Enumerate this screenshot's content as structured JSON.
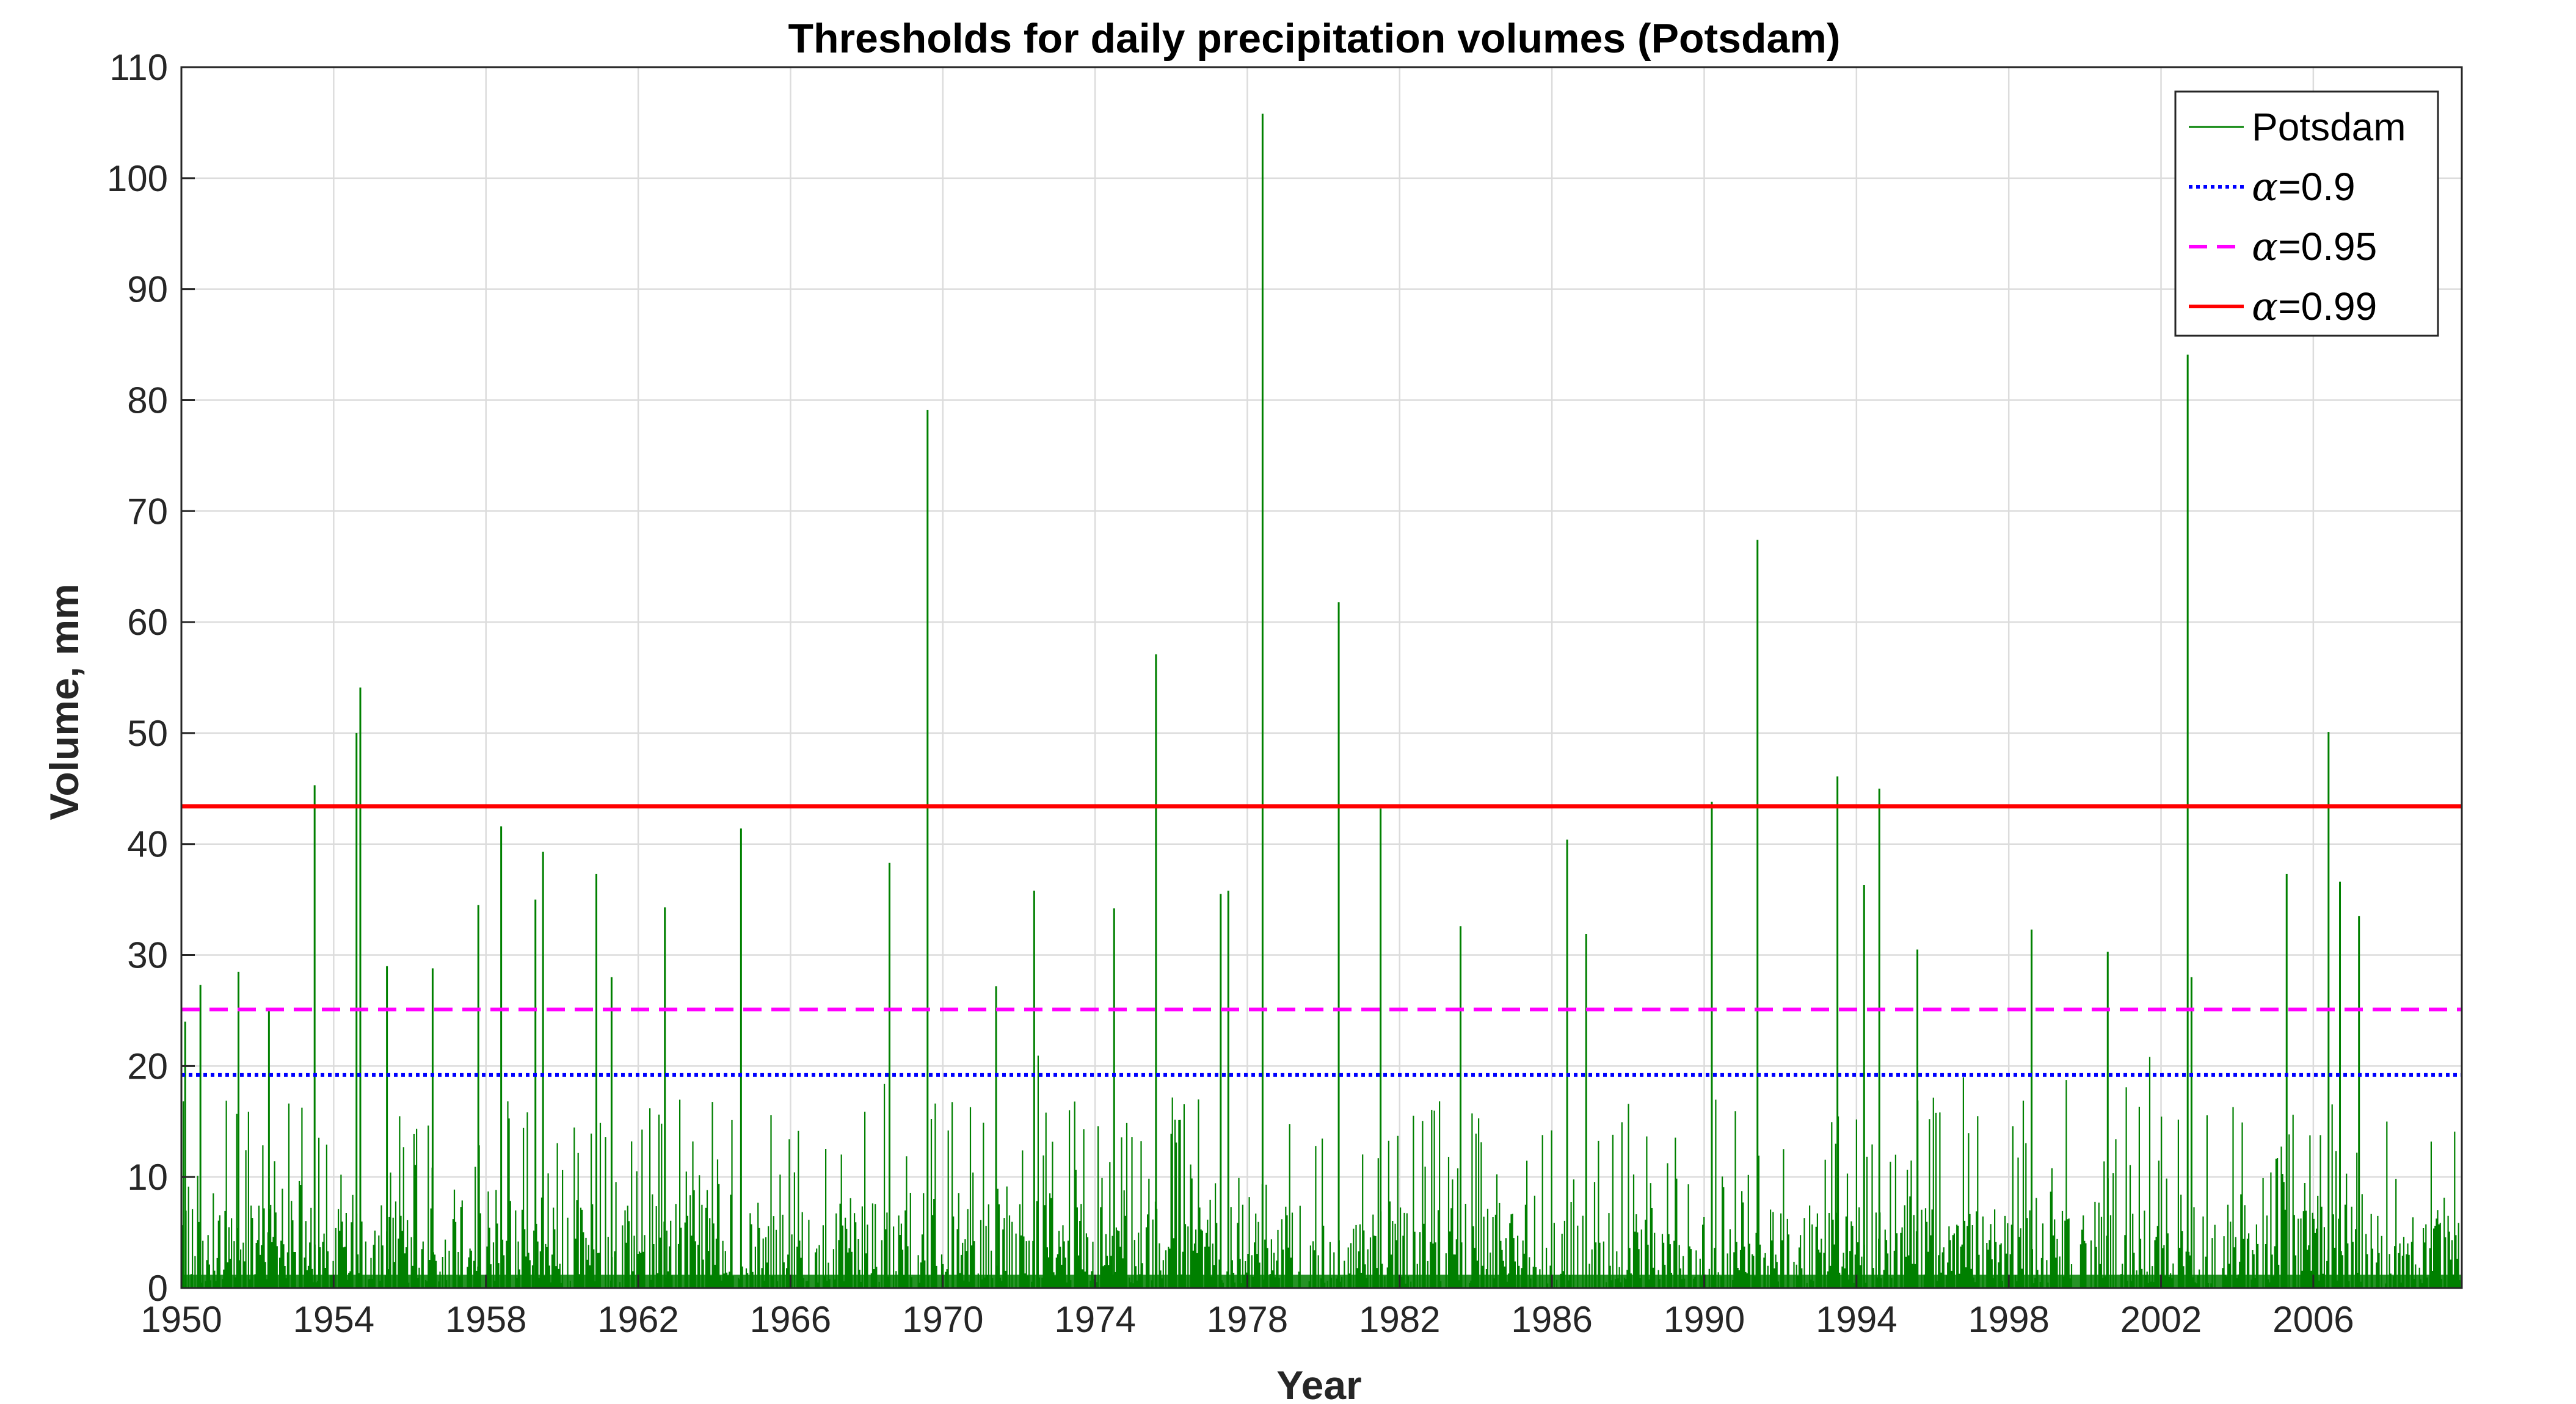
{
  "chart_data": {
    "type": "line",
    "title": "Thresholds for daily precipitation volumes (Potsdam)",
    "xlabel": "Year",
    "ylabel": "Volume, mm",
    "xlim": [
      1950,
      2009.9
    ],
    "ylim": [
      0,
      110
    ],
    "xticks": [
      "1950",
      "1954",
      "1958",
      "1962",
      "1966",
      "1970",
      "1974",
      "1978",
      "1982",
      "1986",
      "1990",
      "1994",
      "1998",
      "2002",
      "2006"
    ],
    "yticks": [
      "0",
      "10",
      "20",
      "30",
      "40",
      "50",
      "60",
      "70",
      "80",
      "90",
      "100",
      "110"
    ],
    "grid": true,
    "legend_position": "top-right",
    "series": [
      {
        "name": "Potsdam",
        "color": "#008000",
        "style": "solid",
        "note_values": "daily precipitation; notable peaks (year, mm)",
        "peaks": [
          [
            1950.1,
            24
          ],
          [
            1950.5,
            27.3
          ],
          [
            1951.5,
            28.5
          ],
          [
            1952.3,
            25
          ],
          [
            1953.5,
            45.3
          ],
          [
            1954.6,
            50
          ],
          [
            1954.7,
            54.1
          ],
          [
            1955.4,
            29
          ],
          [
            1956.6,
            28.8
          ],
          [
            1957.8,
            34.5
          ],
          [
            1958.4,
            41.6
          ],
          [
            1959.3,
            35
          ],
          [
            1959.5,
            39.3
          ],
          [
            1960.9,
            37.3
          ],
          [
            1961.3,
            28
          ],
          [
            1962.7,
            34.3
          ],
          [
            1964.7,
            41.4
          ],
          [
            1968.6,
            38.3
          ],
          [
            1969.6,
            79.1
          ],
          [
            1971.4,
            27.2
          ],
          [
            1972.4,
            35.8
          ],
          [
            1974.5,
            34.2
          ],
          [
            1975.6,
            57.1
          ],
          [
            1977.3,
            35.5
          ],
          [
            1977.5,
            35.8
          ],
          [
            1978.4,
            105.8
          ],
          [
            1980.4,
            61.8
          ],
          [
            1981.5,
            43.2
          ],
          [
            1983.6,
            32.6
          ],
          [
            1986.4,
            40.4
          ],
          [
            1986.9,
            31.9
          ],
          [
            1990.2,
            43.8
          ],
          [
            1991.4,
            67.4
          ],
          [
            1993.5,
            46.1
          ],
          [
            1994.2,
            36.3
          ],
          [
            1994.6,
            45
          ],
          [
            1995.6,
            30.5
          ],
          [
            1998.6,
            32.3
          ],
          [
            2000.6,
            30.3
          ],
          [
            2002.7,
            84.1
          ],
          [
            2002.8,
            28
          ],
          [
            2005.3,
            37.3
          ],
          [
            2006.4,
            50.1
          ],
          [
            2006.7,
            36.6
          ],
          [
            2007.2,
            33.5
          ]
        ]
      },
      {
        "name": "α=0.9",
        "alpha": "α",
        "label_rest": "=0.9",
        "value": 19.2,
        "color": "#0000ff",
        "style": "dotted"
      },
      {
        "name": "α=0.95",
        "alpha": "α",
        "label_rest": "=0.95",
        "value": 25.1,
        "color": "#ff00ff",
        "style": "dashed"
      },
      {
        "name": "α=0.99",
        "alpha": "α",
        "label_rest": "=0.99",
        "value": 43.4,
        "color": "#ff0000",
        "style": "solid"
      }
    ]
  }
}
